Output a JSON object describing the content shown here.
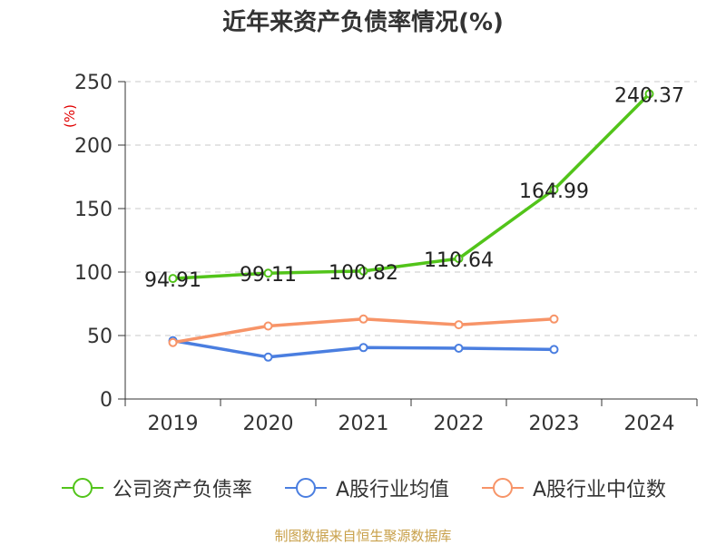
{
  "title": "近年来资产负债率情况(%)",
  "source_note": "制图数据来自恒生聚源数据库",
  "colors": {
    "company": "#52c41a",
    "industry_avg": "#4a7ee0",
    "industry_median": "#f79468",
    "ylabel": "#e00000"
  },
  "chart_data": {
    "type": "line",
    "title": "近年来资产负债率情况(%)",
    "categories": [
      "2019",
      "2020",
      "2021",
      "2022",
      "2023",
      "2024"
    ],
    "ylabel": "(%)",
    "ylim": [
      0,
      250
    ],
    "yticks": [
      0,
      50,
      100,
      150,
      200,
      250
    ],
    "grid": true,
    "legend_position": "bottom",
    "series": [
      {
        "name": "公司资产负债率",
        "values": [
          94.91,
          99.11,
          100.82,
          110.64,
          164.99,
          240.37
        ],
        "labels": [
          "94.91",
          "99.11",
          "100.82",
          "110.64",
          "164.99",
          "240.37"
        ]
      },
      {
        "name": "A股行业均值",
        "values": [
          46,
          33,
          40.5,
          40,
          39,
          null
        ]
      },
      {
        "name": "A股行业中位数",
        "values": [
          44.5,
          57.5,
          63,
          58.5,
          63,
          null
        ]
      }
    ]
  }
}
